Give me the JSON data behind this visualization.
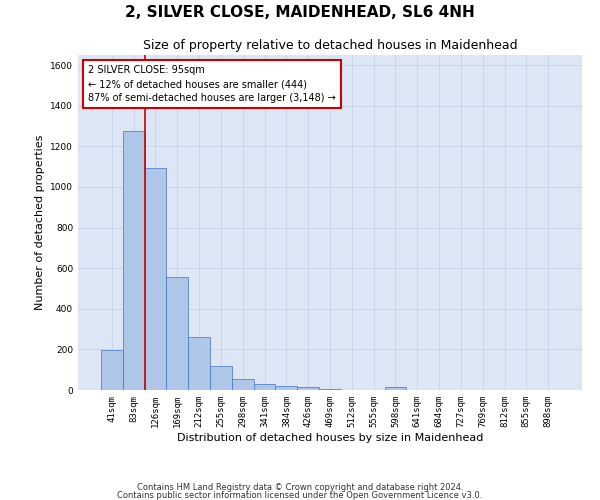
{
  "title": "2, SILVER CLOSE, MAIDENHEAD, SL6 4NH",
  "subtitle": "Size of property relative to detached houses in Maidenhead",
  "xlabel": "Distribution of detached houses by size in Maidenhead",
  "ylabel": "Number of detached properties",
  "categories": [
    "41sqm",
    "83sqm",
    "126sqm",
    "169sqm",
    "212sqm",
    "255sqm",
    "298sqm",
    "341sqm",
    "384sqm",
    "426sqm",
    "469sqm",
    "512sqm",
    "555sqm",
    "598sqm",
    "641sqm",
    "684sqm",
    "727sqm",
    "769sqm",
    "812sqm",
    "855sqm",
    "898sqm"
  ],
  "values": [
    195,
    1275,
    1095,
    555,
    260,
    120,
    55,
    30,
    20,
    15,
    5,
    2,
    2,
    15,
    2,
    2,
    2,
    2,
    2,
    2,
    2
  ],
  "bar_color": "#aec6e8",
  "bar_edge_color": "#4472c4",
  "property_line_x": 1.5,
  "annotation_text": "2 SILVER CLOSE: 95sqm\n← 12% of detached houses are smaller (444)\n87% of semi-detached houses are larger (3,148) →",
  "annotation_box_color": "#ffffff",
  "annotation_box_edge_color": "#cc0000",
  "vline_color": "#cc0000",
  "ylim": [
    0,
    1650
  ],
  "yticks": [
    0,
    200,
    400,
    600,
    800,
    1000,
    1200,
    1400,
    1600
  ],
  "grid_color": "#c8d4e8",
  "bg_color": "#dce6f5",
  "footnote1": "Contains HM Land Registry data © Crown copyright and database right 2024.",
  "footnote2": "Contains public sector information licensed under the Open Government Licence v3.0.",
  "title_fontsize": 11,
  "subtitle_fontsize": 9,
  "tick_fontsize": 6.5,
  "label_fontsize": 8,
  "annot_fontsize": 7,
  "footnote_fontsize": 6
}
